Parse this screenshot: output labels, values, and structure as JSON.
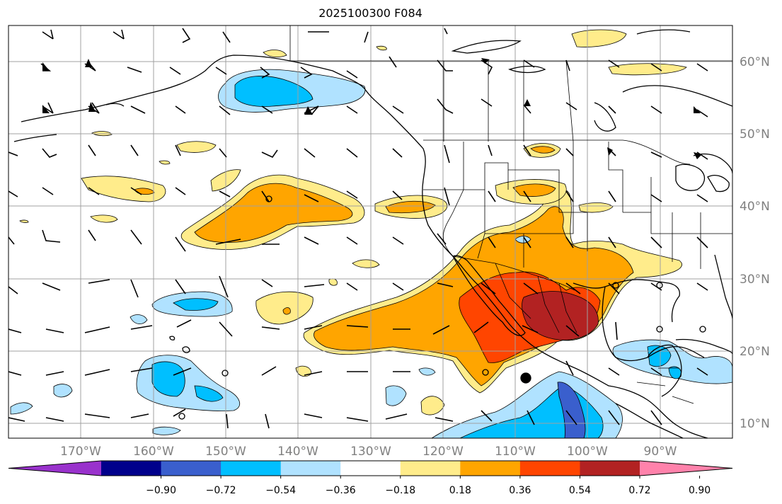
{
  "title": "2025100300 F084",
  "map": {
    "lon_range": [
      -180,
      -80
    ],
    "lat_range": [
      8,
      65
    ],
    "lat_ticks": [
      {
        "value": 10,
        "label": "10°N"
      },
      {
        "value": 20,
        "label": "20°N"
      },
      {
        "value": 30,
        "label": "30°N"
      },
      {
        "value": 40,
        "label": "40°N"
      },
      {
        "value": 50,
        "label": "50°N"
      },
      {
        "value": 60,
        "label": "60°N"
      }
    ],
    "lon_ticks": [
      {
        "value": -170,
        "label": "170°W"
      },
      {
        "value": -160,
        "label": "160°W"
      },
      {
        "value": -150,
        "label": "150°W"
      },
      {
        "value": -140,
        "label": "140°W"
      },
      {
        "value": -130,
        "label": "130°W"
      },
      {
        "value": -120,
        "label": "120°W"
      },
      {
        "value": -110,
        "label": "110°W"
      },
      {
        "value": -100,
        "label": "100°W"
      },
      {
        "value": -90,
        "label": "90°W"
      }
    ],
    "grid": true,
    "tick_label_color": "#808080"
  },
  "colorbar": {
    "orientation": "horizontal",
    "extend": "both",
    "tick_labels": [
      "−0.90",
      "−0.72",
      "−0.54",
      "−0.36",
      "−0.18",
      "0.18",
      "0.36",
      "0.54",
      "0.72",
      "0.90"
    ],
    "colors": [
      "#9932cc",
      "#00008b",
      "#3a5fcd",
      "#00bfff",
      "#b0e2ff",
      "#ffffff",
      "#ffec8b",
      "#ffa500",
      "#ff4500",
      "#b22222",
      "#ff82ab"
    ]
  }
}
